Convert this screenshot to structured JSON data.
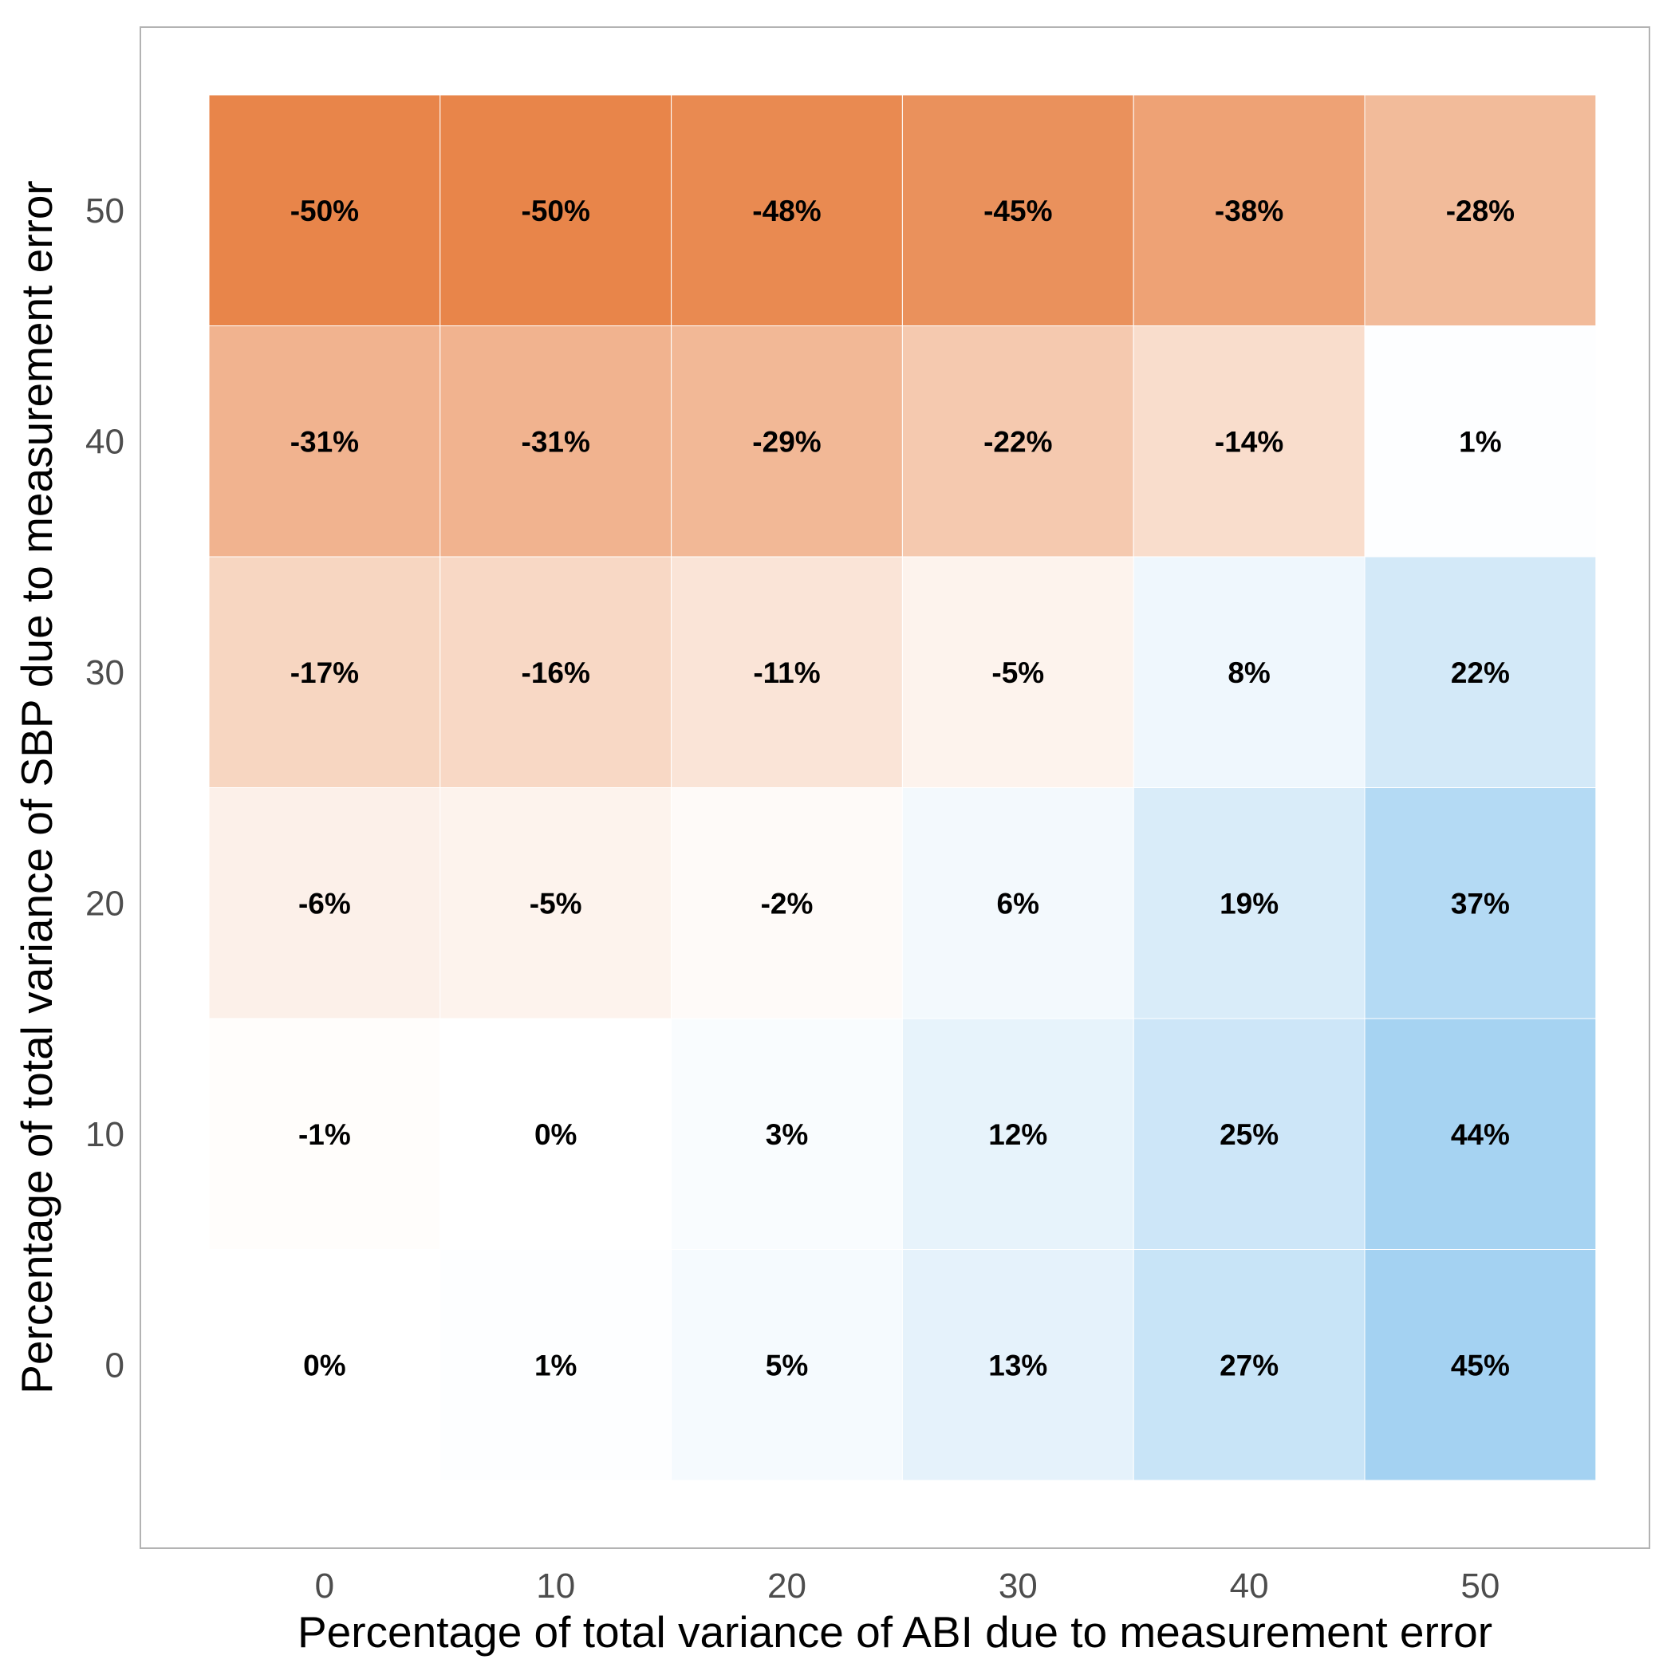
{
  "chart_data": {
    "type": "heatmap",
    "title": "",
    "xlabel": "Percentage of total variance of ABI due to measurement error",
    "ylabel": "Percentage of total variance of SBP due to measurement error",
    "x": [
      0,
      10,
      20,
      30,
      40,
      50
    ],
    "y": [
      0,
      10,
      20,
      30,
      40,
      50
    ],
    "x_tick_labels": [
      "0",
      "10",
      "20",
      "30",
      "40",
      "50"
    ],
    "y_tick_labels": [
      "0",
      "10",
      "20",
      "30",
      "40",
      "50"
    ],
    "values_unit": "%",
    "values": [
      [
        0,
        1,
        5,
        13,
        27,
        45
      ],
      [
        -1,
        0,
        3,
        12,
        25,
        44
      ],
      [
        -6,
        -5,
        -2,
        6,
        19,
        37
      ],
      [
        -17,
        -16,
        -11,
        -5,
        8,
        22
      ],
      [
        -31,
        -31,
        -29,
        -22,
        -14,
        1
      ],
      [
        -50,
        -50,
        -48,
        -45,
        -38,
        -28
      ]
    ],
    "color_scale": {
      "negative": "#e8854a",
      "zero": "#ffffff",
      "positive": "#9acdf0",
      "min": -50,
      "max": 50
    },
    "grid": false,
    "legend": "none",
    "panel_border": "#b3b3b3"
  }
}
